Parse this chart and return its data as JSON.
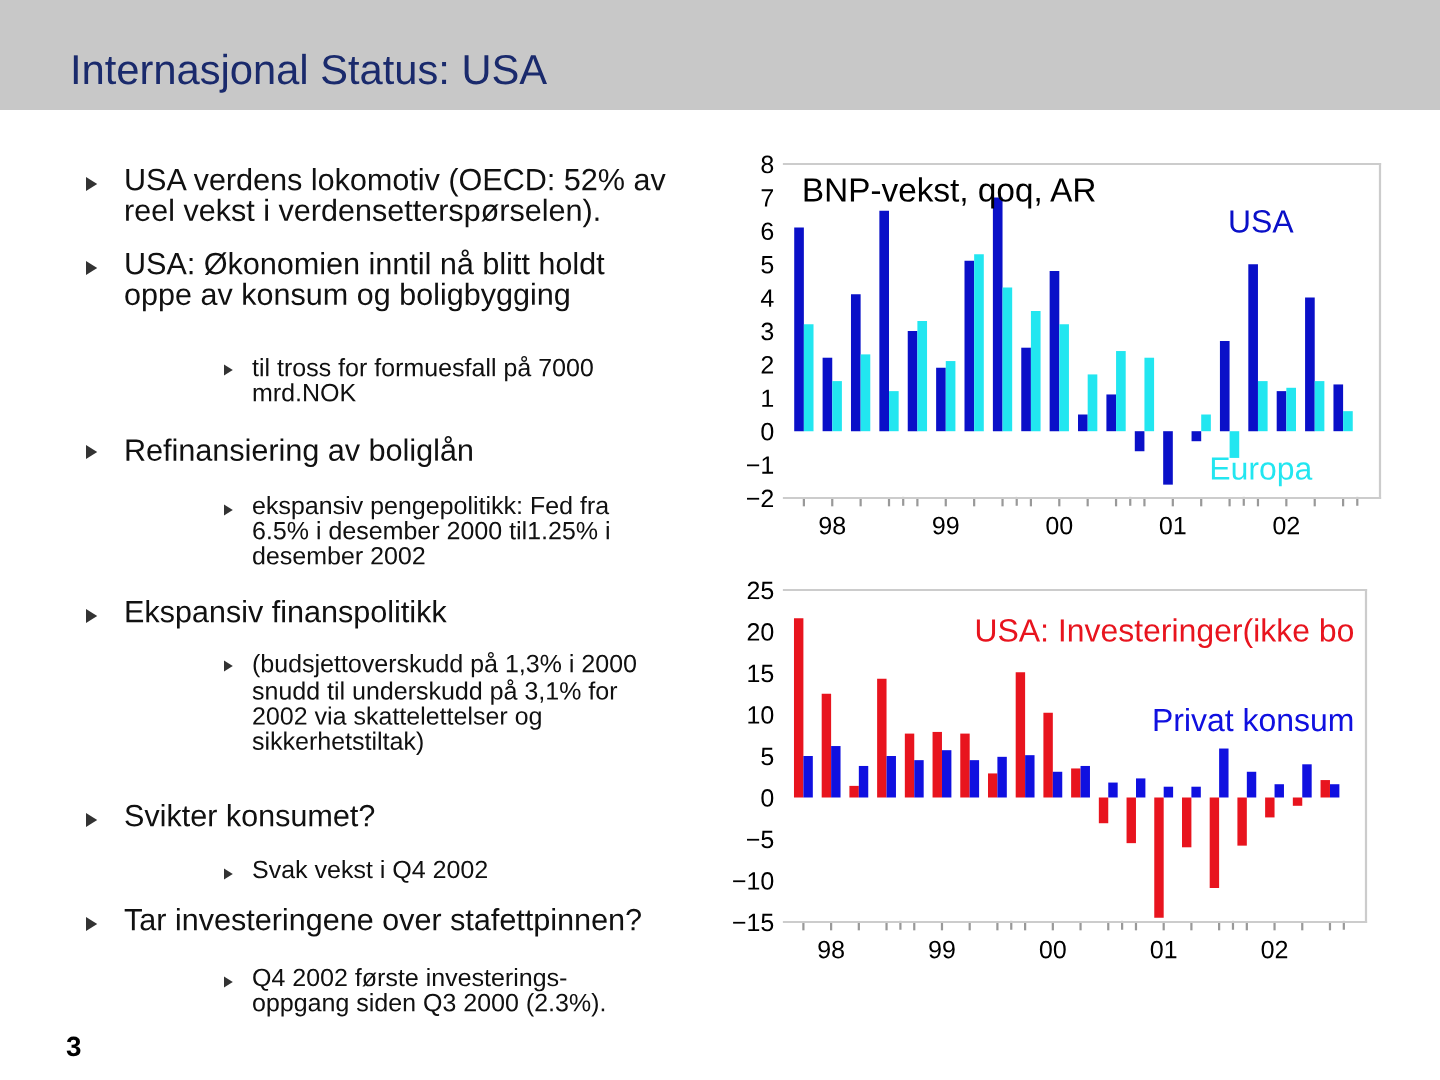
{
  "chart_data": [
    {
      "type": "other",
      "title": "Internasjonal Status: USA",
      "annotations": [
        "USA verdens lokomotiv (OECD: 52% av\nreel vekst i verdensetterspørselen).",
        "USA: Økonomien inntil nå blitt holdt\noppe av konsum og boligbygging",
        "til tross for formuesfall på 7000\nmrd.NOK",
        "Refinansiering av boliglån",
        "ekspansiv pengepolitikk: Fed fra\n6.5% i desember 2000 til1.25% i\ndesember 2002",
        "Ekspansiv finanspolitikk",
        "(budsjettoverskudd på 1,3% i 2000\nsnudd til underskudd på 3,1% for\n2002 via skattelettelser og\nsikkerhetstiltak)",
        "Svikter konsumet?",
        "Svak vekst i Q4 2002",
        "Tar investeringene over stafettpinnen?",
        "Q4 2002 første investerings-\noppgang siden Q3 2000 (2.3%).",
        "3"
      ]
    },
    {
      "type": "bar",
      "title": "BNP-vekst, qoq, AR",
      "categories": [
        null,
        "98",
        null,
        null,
        null,
        "99",
        null,
        null,
        null,
        "00",
        null,
        null,
        null,
        "01",
        null,
        null,
        null,
        "02",
        null,
        null
      ],
      "series": [
        {
          "name": "USA",
          "color": "#0a10c8",
          "values": [
            6.1,
            2.2,
            4.1,
            6.6,
            3.0,
            1.9,
            5.1,
            7.0,
            2.5,
            4.8,
            0.5,
            1.1,
            -0.6,
            -1.6,
            -0.3,
            2.7,
            5.0,
            1.2,
            4.0,
            1.4
          ]
        },
        {
          "name": "Europa",
          "color": "#22e6f0",
          "values": [
            3.2,
            1.5,
            2.3,
            1.2,
            3.3,
            2.1,
            5.3,
            4.3,
            3.6,
            3.2,
            1.7,
            2.4,
            2.2,
            0.0,
            0.5,
            -0.8,
            1.5,
            1.3,
            1.5,
            0.6
          ]
        }
      ],
      "ylim": [
        -2,
        8
      ],
      "yticks": [
        -2,
        -1,
        0,
        1,
        2,
        3,
        4,
        5,
        6,
        7,
        8
      ],
      "legend": false,
      "grid": false
    },
    {
      "type": "bar",
      "categories": [
        null,
        "98",
        null,
        null,
        null,
        "99",
        null,
        null,
        null,
        "00",
        null,
        null,
        null,
        "01",
        null,
        null,
        null,
        "02",
        null,
        null
      ],
      "series": [
        {
          "name": "USA: Investeringer(ikke bo",
          "color": "#e8141e",
          "values": [
            21.6,
            12.5,
            1.4,
            14.3,
            7.7,
            7.9,
            7.7,
            2.9,
            15.1,
            10.2,
            3.5,
            -3.1,
            -5.5,
            -14.5,
            -6.0,
            -10.9,
            -5.8,
            -2.4,
            -1.0,
            2.1
          ]
        },
        {
          "name": "Privat konsum",
          "color": "#1010e0",
          "values": [
            5.0,
            6.2,
            3.8,
            5.0,
            4.5,
            5.7,
            4.5,
            4.9,
            5.1,
            3.1,
            3.8,
            1.8,
            2.3,
            1.3,
            1.3,
            5.9,
            3.1,
            1.6,
            4.0,
            1.6
          ]
        }
      ],
      "ylim": [
        -15,
        25
      ],
      "yticks": [
        -15,
        -10,
        -5,
        0,
        5,
        10,
        15,
        20,
        25
      ],
      "legend": false,
      "grid": false
    }
  ]
}
